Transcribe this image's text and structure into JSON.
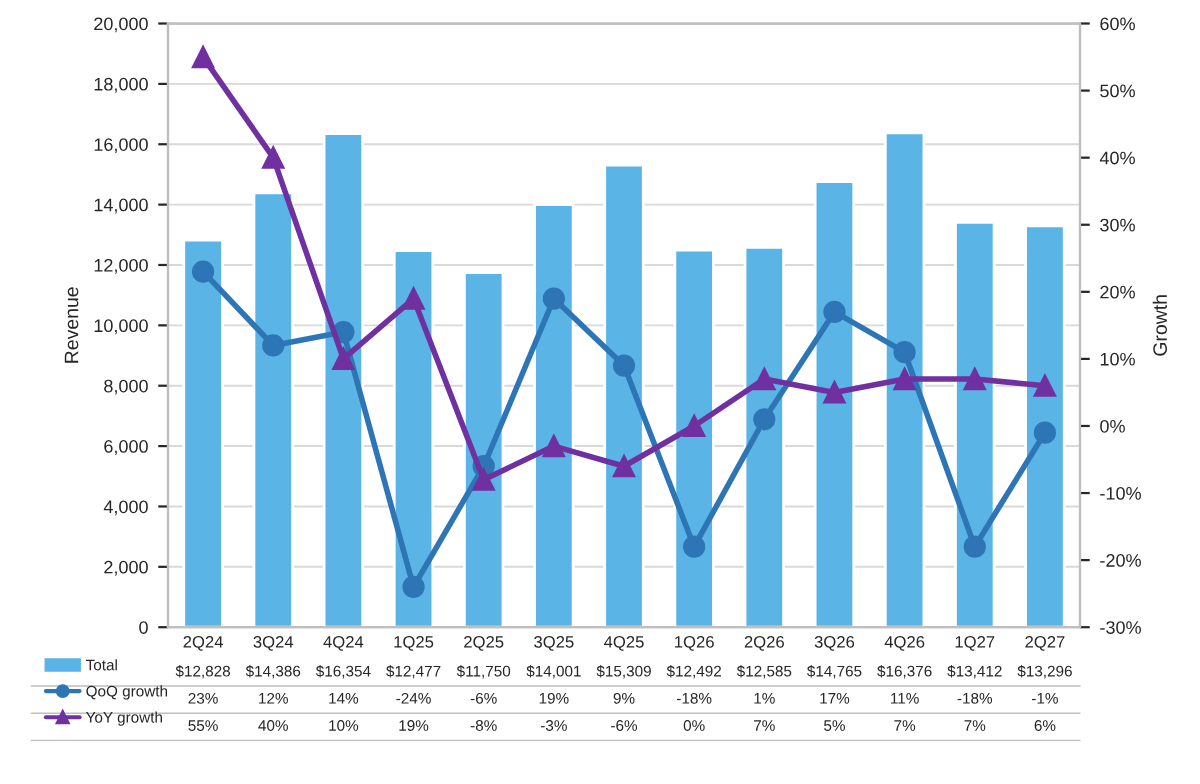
{
  "chart_data": {
    "type": "bar",
    "categories": [
      "2Q24",
      "3Q24",
      "4Q24",
      "1Q25",
      "2Q25",
      "3Q25",
      "4Q25",
      "1Q26",
      "2Q26",
      "3Q26",
      "4Q26",
      "1Q27",
      "2Q27"
    ],
    "series": [
      {
        "name": "Total",
        "color": "#5ab4e5",
        "values": [
          12828,
          14386,
          16354,
          12477,
          11750,
          14001,
          15309,
          12492,
          12585,
          14765,
          16376,
          13412,
          13296
        ],
        "value_labels": [
          "$12,828",
          "$14,386",
          "$16,354",
          "$12,477",
          "$11,750",
          "$14,001",
          "$15,309",
          "$12,492",
          "$12,585",
          "$14,765",
          "$16,376",
          "$13,412",
          "$13,296"
        ]
      },
      {
        "name": "QoQ growth",
        "type": "line",
        "axis": "y2",
        "color": "#2e75b6",
        "marker": "circle",
        "values": [
          23,
          12,
          14,
          -24,
          -6,
          19,
          9,
          -18,
          1,
          17,
          11,
          -18,
          -1
        ],
        "value_labels": [
          "23%",
          "12%",
          "14%",
          "-24%",
          "-6%",
          "19%",
          "9%",
          "-18%",
          "1%",
          "17%",
          "11%",
          "-18%",
          "-1%"
        ]
      },
      {
        "name": "YoY growth",
        "type": "line",
        "axis": "y2",
        "color": "#7030a0",
        "marker": "triangle",
        "values": [
          55,
          40,
          10,
          19,
          -8,
          -3,
          -6,
          0,
          7,
          5,
          7,
          7,
          6
        ],
        "value_labels": [
          "55%",
          "40%",
          "10%",
          "19%",
          "-8%",
          "-3%",
          "-6%",
          "0%",
          "7%",
          "5%",
          "7%",
          "7%",
          "6%"
        ]
      }
    ],
    "ylabel": "Revenue",
    "y2label": "Growth",
    "ylim": [
      0,
      20000
    ],
    "yticks": [
      0,
      {
        "value": 2000,
        "label": "2,000"
      },
      {
        "value": 4000,
        "label": "4,000"
      },
      {
        "value": 6000,
        "label": "6,000"
      },
      {
        "value": 8000,
        "label": "8,000"
      },
      {
        "value": 10000,
        "label": "10,000"
      },
      {
        "value": 12000,
        "label": "12,000"
      },
      {
        "value": 14000,
        "label": "14,000"
      },
      {
        "value": 16000,
        "label": "16,000"
      },
      {
        "value": 18000,
        "label": "18,000"
      },
      {
        "value": 20000,
        "label": "20,000"
      }
    ],
    "y2lim": [
      -30,
      60
    ],
    "y2ticks": [
      {
        "value": -30,
        "label": "-30%"
      },
      {
        "value": -20,
        "label": "-20%"
      },
      {
        "value": -10,
        "label": "-10%"
      },
      {
        "value": 0,
        "label": "0%"
      },
      {
        "value": 10,
        "label": "10%"
      },
      {
        "value": 20,
        "label": "20%"
      },
      {
        "value": 30,
        "label": "30%"
      },
      {
        "value": 40,
        "label": "40%"
      },
      {
        "value": 50,
        "label": "50%"
      },
      {
        "value": 60,
        "label": "60%"
      }
    ],
    "grid": "y",
    "legend": "bottom"
  }
}
